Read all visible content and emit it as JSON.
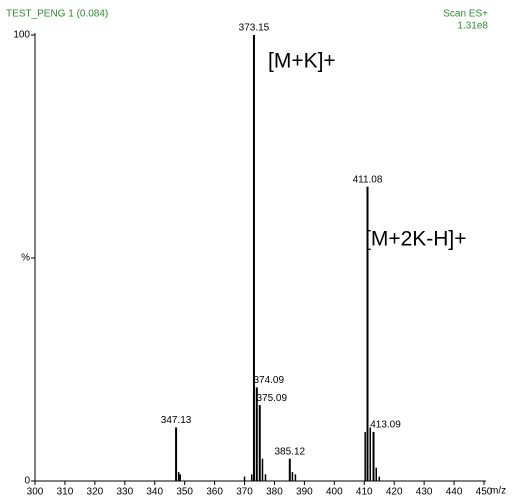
{
  "chart_data": {
    "type": "stick",
    "title": "TEST_PENG 1 (0.084)",
    "scan_label": "Scan ES+",
    "intensity_label": "1.31e8",
    "x_label": "m/z",
    "x": [
      347.13,
      373.15,
      374.09,
      375.09,
      385.12,
      411.08,
      413.09
    ],
    "values": [
      12,
      100,
      21,
      17,
      5,
      66,
      11
    ],
    "minor_peaks": {
      "x": [
        348,
        348.5,
        370,
        372.4,
        376,
        377,
        386,
        387,
        410.3,
        412,
        414,
        415
      ],
      "values": [
        2,
        1.5,
        1,
        1.5,
        5,
        1.5,
        2,
        1.5,
        11,
        12,
        3,
        1
      ]
    },
    "annotations": [
      "[M+K]+",
      "[M+2K-H]+"
    ],
    "color": "#000000",
    "text_color": "#2e8b2e",
    "xlim": [
      300,
      450
    ],
    "xticks": [
      300,
      310,
      320,
      330,
      340,
      350,
      360,
      370,
      380,
      390,
      400,
      410,
      420,
      430,
      440,
      450
    ],
    "ylim": [
      0,
      100
    ],
    "yticks": [
      0,
      {
        "value": 50,
        "label": "%"
      },
      100
    ]
  }
}
